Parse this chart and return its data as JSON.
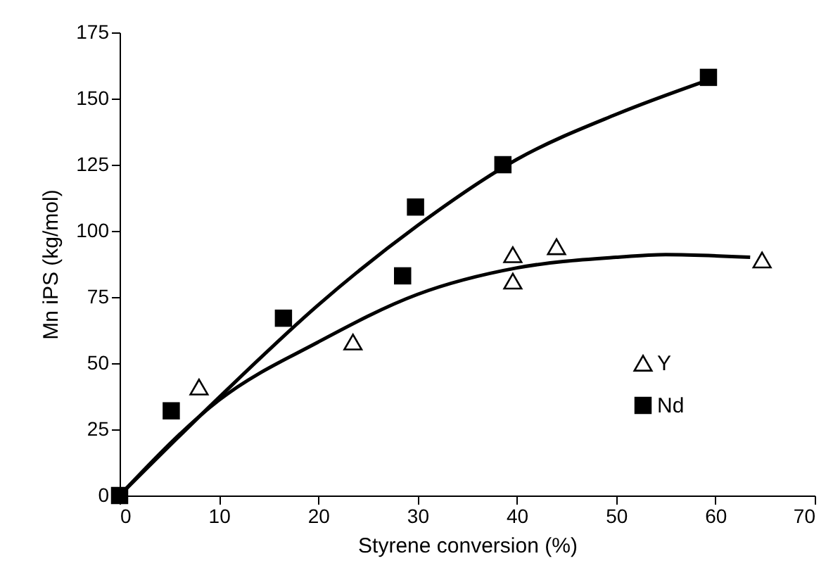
{
  "chart_data": {
    "type": "scatter",
    "xlabel": "Styrene conversion (%)",
    "ylabel": "Mn iPS (kg/mol)",
    "xlim": [
      0,
      70
    ],
    "xticks": [
      0,
      10,
      20,
      30,
      40,
      50,
      60,
      70
    ],
    "ylim": [
      0,
      175
    ],
    "yticks": [
      0,
      25,
      50,
      75,
      100,
      125,
      150,
      175
    ],
    "grid": false,
    "legend": "right",
    "series": [
      {
        "name": "Y",
        "color": "#000000",
        "marker": "triangle",
        "x": [
          8,
          23.5,
          39.6,
          39.6,
          44,
          64.7
        ],
        "values": [
          41,
          58,
          91,
          81,
          94,
          89
        ]
      },
      {
        "name": "Nd",
        "color": "#000000",
        "marker": "square",
        "x": [
          0,
          5.2,
          16.5,
          28.5,
          29.8,
          38.6,
          59.3
        ],
        "values": [
          0,
          32,
          67,
          83,
          109,
          125,
          158
        ]
      },
      {
        "type": "line",
        "color": "#000000",
        "marker": "none",
        "x": [
          0,
          10,
          20,
          30,
          40,
          50,
          55,
          63.5
        ],
        "values": [
          0,
          36,
          58,
          76,
          86,
          90,
          91,
          90
        ]
      },
      {
        "type": "line",
        "color": "#000000",
        "marker": "none",
        "x": [
          0,
          10,
          20,
          30,
          40,
          50,
          59.3
        ],
        "values": [
          0,
          37,
          72,
          102,
          127,
          144,
          157
        ]
      }
    ]
  }
}
